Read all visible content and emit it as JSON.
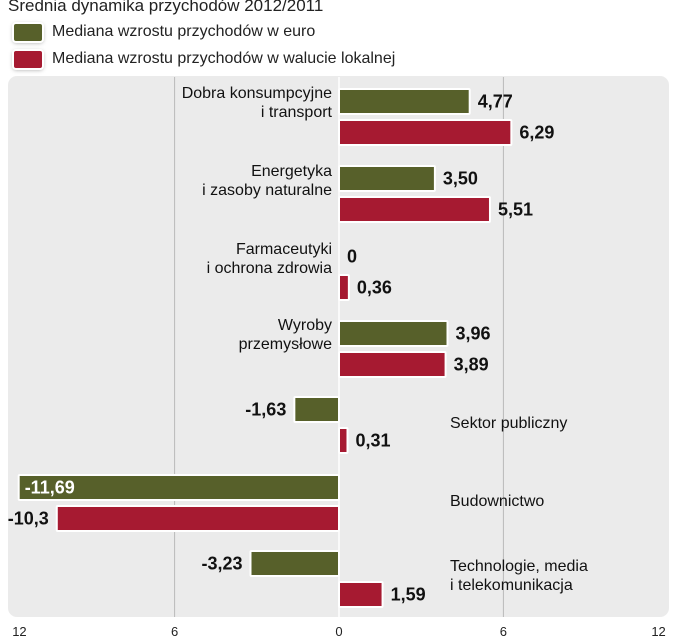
{
  "title": "Średnia dynamika przychodów 2012/2011",
  "legend": [
    {
      "label": "Mediana wzrostu przychodów w euro",
      "color": "#57602a"
    },
    {
      "label": "Mediana wzrostu przychodów w walucie lokalnej",
      "color": "#a61a31"
    }
  ],
  "chart_data": {
    "type": "bar",
    "orientation": "horizontal",
    "title": "Średnia dynamika przychodów 2012/2011",
    "categories": [
      [
        "Dobra konsumpcyjne",
        "i transport"
      ],
      [
        "Energetyka",
        "i zasoby naturalne"
      ],
      [
        "Farmaceutyki",
        "i ochrona zdrowia"
      ],
      [
        "Wyroby",
        "przemysłowe"
      ],
      [
        "Sektor publiczny"
      ],
      [
        "Budownictwo"
      ],
      [
        "Technologie, media",
        "i telekomunikacja"
      ]
    ],
    "series": [
      {
        "name": "Mediana wzrostu przychodów w euro",
        "color": "#57602a",
        "values": [
          4.77,
          3.5,
          0,
          3.96,
          -1.63,
          -11.69,
          -3.23
        ],
        "labels": [
          "4,77",
          "3,50",
          "0",
          "3,96",
          "-1,63",
          "-11,69",
          "-3,23"
        ]
      },
      {
        "name": "Mediana wzrostu przychodów w walucie lokalnej",
        "color": "#a61a31",
        "values": [
          6.29,
          5.51,
          0.36,
          3.89,
          0.31,
          -10.3,
          1.59
        ],
        "labels": [
          "6,29",
          "5,51",
          "0,36",
          "3,89",
          "0,31",
          "-10,3",
          "1,59"
        ]
      }
    ],
    "xlim": [
      -12,
      12
    ],
    "xticks": [
      {
        "value": -12,
        "label": "12"
      },
      {
        "value": -6,
        "label": "6"
      },
      {
        "value": 0,
        "label": "0"
      },
      {
        "value": 6,
        "label": "6"
      },
      {
        "value": 12,
        "label": "12"
      }
    ],
    "grid": true
  }
}
